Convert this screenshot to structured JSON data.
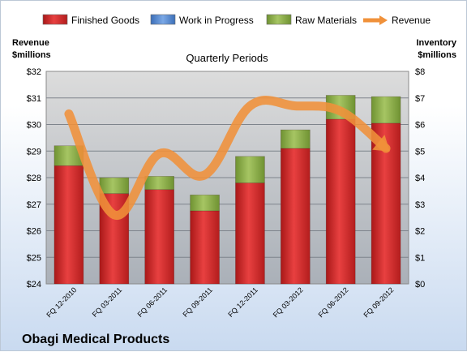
{
  "chart_data": {
    "type": "bar",
    "subtitle": "Quarterly Periods",
    "footer_title": "Obagi Medical Products",
    "y_left_label": [
      "Revenue",
      "$millions"
    ],
    "y_right_label": [
      "Inventory",
      "$millions"
    ],
    "categories": [
      "FQ 12-2010",
      "FQ 03-2011",
      "FQ 06-2011",
      "FQ 09-2011",
      "FQ 12-2011",
      "FQ 03-2012",
      "FQ 06-2012",
      "FQ 09-2012"
    ],
    "left_axis": {
      "min": 24,
      "max": 32,
      "ticks": [
        "$24",
        "$25",
        "$26",
        "$27",
        "$28",
        "$29",
        "$30",
        "$31",
        "$32"
      ]
    },
    "right_axis": {
      "min": 0,
      "max": 8,
      "ticks": [
        "$0",
        "$1",
        "$2",
        "$3",
        "$4",
        "$5",
        "$6",
        "$7",
        "$8"
      ]
    },
    "series": [
      {
        "name": "Finished Goods",
        "kind": "stacked-bar",
        "axis": "right",
        "color": "#d52b2b",
        "values": [
          4.45,
          3.4,
          3.55,
          2.75,
          3.8,
          5.1,
          6.2,
          6.05
        ]
      },
      {
        "name": "Work in Progress",
        "kind": "stacked-bar",
        "axis": "right",
        "color": "#5b8fd6",
        "values": [
          0,
          0,
          0,
          0,
          0,
          0,
          0,
          0
        ]
      },
      {
        "name": "Raw Materials",
        "kind": "stacked-bar",
        "axis": "right",
        "color": "#8db04a",
        "values": [
          0.75,
          0.6,
          0.5,
          0.6,
          1.0,
          0.7,
          0.9,
          1.0
        ]
      },
      {
        "name": "Revenue",
        "kind": "line",
        "axis": "left",
        "color": "#f0913a",
        "values": [
          30.4,
          26.6,
          28.9,
          28.1,
          30.7,
          30.7,
          30.5,
          29.1
        ]
      }
    ],
    "grid": true,
    "legend_position": "top"
  }
}
